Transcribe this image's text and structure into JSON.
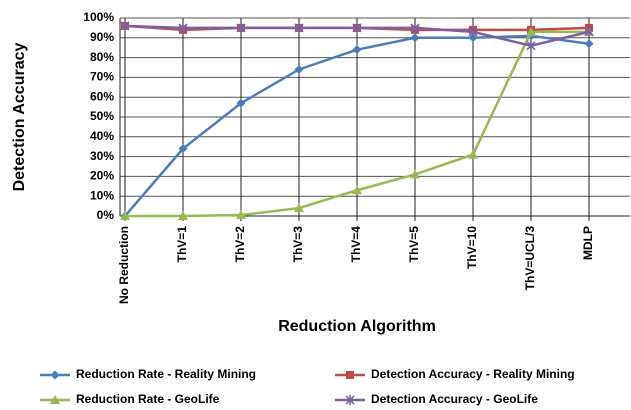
{
  "chart_data": {
    "type": "line",
    "x_label": "Reduction Algorithm",
    "y_label": "Detection Accuracy",
    "categories": [
      "No Reduction",
      "ThV=1",
      "ThV=2",
      "ThV=3",
      "ThV=4",
      "ThV=5",
      "ThV=10",
      "ThV=UCL/3",
      "MDLP"
    ],
    "series": [
      {
        "name": "Reduction Rate - Reality Mining",
        "color": "#4a7ebb",
        "marker": "diamond",
        "values": [
          0,
          34,
          57,
          74,
          84,
          90,
          90,
          91,
          87
        ]
      },
      {
        "name": "Detection Accuracy - Reality Mining",
        "color": "#be4b48",
        "marker": "square",
        "values": [
          96,
          94,
          95,
          95,
          95,
          94,
          94,
          94,
          95
        ]
      },
      {
        "name": "Reduction Rate - GeoLife",
        "color": "#98b954",
        "marker": "triangle",
        "values": [
          0,
          0,
          0.5,
          4,
          13,
          21,
          31,
          93,
          93
        ]
      },
      {
        "name": "Detection Accuracy - GeoLife",
        "color": "#7d60a0",
        "marker": "x",
        "values": [
          96,
          95,
          95,
          95,
          95,
          95,
          93,
          86,
          93
        ]
      }
    ],
    "ylim": [
      0,
      100
    ],
    "yticks": [
      {
        "value": 0,
        "label": "0%"
      },
      {
        "value": 10,
        "label": "10%"
      },
      {
        "value": 20,
        "label": "20%"
      },
      {
        "value": 30,
        "label": "30%"
      },
      {
        "value": 40,
        "label": "40%"
      },
      {
        "value": 50,
        "label": "50%"
      },
      {
        "value": 60,
        "label": "60%"
      },
      {
        "value": 70,
        "label": "70%"
      },
      {
        "value": 80,
        "label": "80%"
      },
      {
        "value": 90,
        "label": "90%"
      },
      {
        "value": 100,
        "label": "100%"
      }
    ],
    "grid": true,
    "legend": "bottom"
  }
}
